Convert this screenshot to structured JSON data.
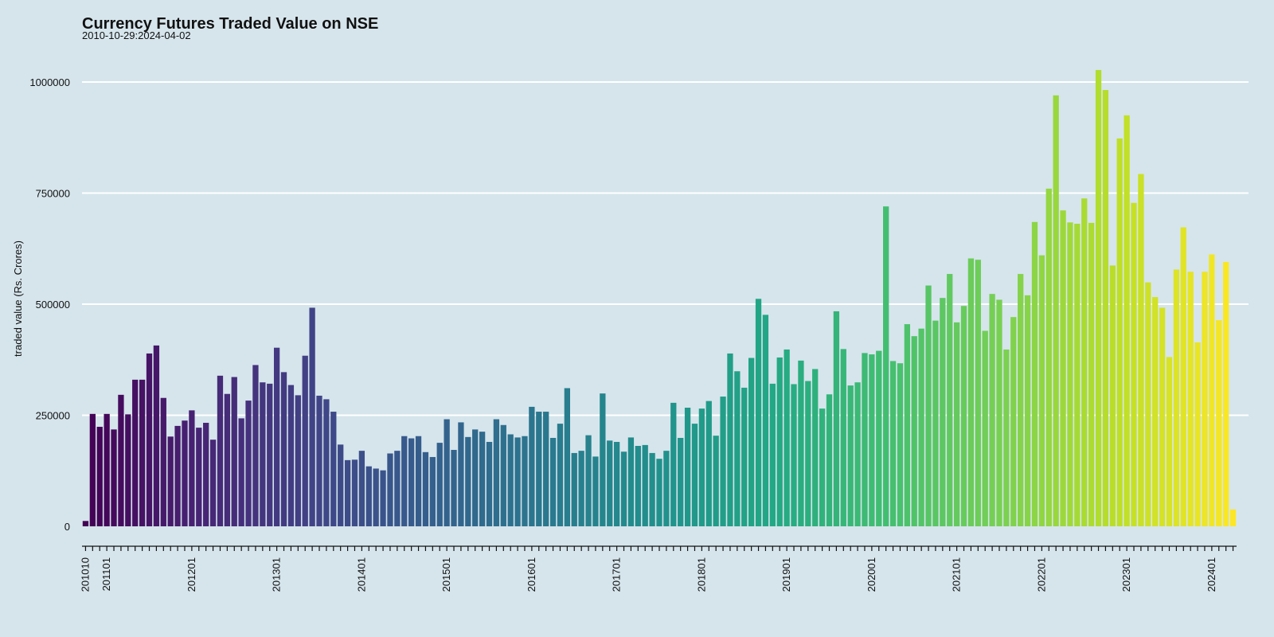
{
  "chart_data": {
    "type": "bar",
    "title": "Currency Futures Traded Value on NSE",
    "subtitle": "2010-10-29:2024-04-02",
    "xlabel": "",
    "ylabel": "traded value (Rs. Crores)",
    "ylim": [
      0,
      1050000
    ],
    "yticks": [
      0,
      250000,
      500000,
      750000,
      1000000
    ],
    "ytick_labels": [
      "0",
      "250000",
      "500000",
      "750000",
      "1000000"
    ],
    "grid": "horizontal",
    "legend": "none",
    "bar_color_scale": "viridis",
    "bar_colors_start": "#440154",
    "bar_colors_end": "#fde725",
    "xtick_labels": [
      "201010",
      "201101",
      "201201",
      "201301",
      "201401",
      "201501",
      "201601",
      "201701",
      "201801",
      "201901",
      "202001",
      "202101",
      "202201",
      "202301",
      "202401"
    ],
    "categories": [
      "201010",
      "201011",
      "201012",
      "201101",
      "201102",
      "201103",
      "201104",
      "201105",
      "201106",
      "201107",
      "201108",
      "201109",
      "201110",
      "201111",
      "201112",
      "201201",
      "201202",
      "201203",
      "201204",
      "201205",
      "201206",
      "201207",
      "201208",
      "201209",
      "201210",
      "201211",
      "201212",
      "201301",
      "201302",
      "201303",
      "201304",
      "201305",
      "201306",
      "201307",
      "201308",
      "201309",
      "201310",
      "201311",
      "201312",
      "201401",
      "201402",
      "201403",
      "201404",
      "201405",
      "201406",
      "201407",
      "201408",
      "201409",
      "201410",
      "201411",
      "201412",
      "201501",
      "201502",
      "201503",
      "201504",
      "201505",
      "201506",
      "201507",
      "201508",
      "201509",
      "201510",
      "201511",
      "201512",
      "201601",
      "201602",
      "201603",
      "201604",
      "201605",
      "201606",
      "201607",
      "201608",
      "201609",
      "201610",
      "201611",
      "201612",
      "201701",
      "201702",
      "201703",
      "201704",
      "201705",
      "201706",
      "201707",
      "201708",
      "201709",
      "201710",
      "201711",
      "201712",
      "201801",
      "201802",
      "201803",
      "201804",
      "201805",
      "201806",
      "201807",
      "201808",
      "201809",
      "201810",
      "201811",
      "201812",
      "201901",
      "201902",
      "201903",
      "201904",
      "201905",
      "201906",
      "201907",
      "201908",
      "201909",
      "201910",
      "201911",
      "201912",
      "202001",
      "202002",
      "202003",
      "202004",
      "202005",
      "202006",
      "202007",
      "202008",
      "202009",
      "202010",
      "202011",
      "202012",
      "202101",
      "202102",
      "202103",
      "202104",
      "202105",
      "202106",
      "202107",
      "202108",
      "202109",
      "202110",
      "202111",
      "202112",
      "202201",
      "202202",
      "202203",
      "202204",
      "202205",
      "202206",
      "202207",
      "202208",
      "202209",
      "202210",
      "202211",
      "202212",
      "202301",
      "202302",
      "202303",
      "202304",
      "202305",
      "202306",
      "202307",
      "202308",
      "202309",
      "202310",
      "202311",
      "202312",
      "202401",
      "202402",
      "202403",
      "202404"
    ],
    "values": [
      12000,
      253000,
      224000,
      253000,
      218000,
      296000,
      252000,
      330000,
      330000,
      389000,
      407000,
      289000,
      202000,
      226000,
      238000,
      261000,
      222000,
      233000,
      195000,
      339000,
      298000,
      336000,
      243000,
      283000,
      363000,
      324000,
      321000,
      402000,
      347000,
      318000,
      295000,
      384000,
      492000,
      294000,
      286000,
      258000,
      184000,
      149000,
      150000,
      170000,
      135000,
      130000,
      126000,
      164000,
      170000,
      203000,
      198000,
      203000,
      167000,
      156000,
      188000,
      241000,
      172000,
      234000,
      201000,
      218000,
      213000,
      190000,
      241000,
      228000,
      207000,
      200000,
      203000,
      269000,
      258000,
      258000,
      199000,
      231000,
      311000,
      165000,
      170000,
      205000,
      157000,
      299000,
      193000,
      190000,
      168000,
      200000,
      181000,
      183000,
      165000,
      152000,
      170000,
      278000,
      199000,
      267000,
      231000,
      265000,
      282000,
      204000,
      292000,
      389000,
      349000,
      312000,
      379000,
      512000,
      476000,
      321000,
      380000,
      398000,
      320000,
      373000,
      327000,
      354000,
      265000,
      297000,
      484000,
      399000,
      317000,
      324000,
      390000,
      387000,
      395000,
      720000,
      372000,
      367000,
      455000,
      428000,
      445000,
      542000,
      463000,
      514000,
      568000,
      459000,
      496000,
      603000,
      600000,
      440000,
      523000,
      510000,
      398000,
      471000,
      568000,
      520000,
      685000,
      610000,
      760000,
      970000,
      711000,
      684000,
      681000,
      738000,
      683000,
      1027000,
      982000,
      587000,
      873000,
      925000,
      728000,
      793000,
      549000,
      516000,
      492000,
      381000,
      578000,
      673000,
      573000,
      414000,
      573000,
      612000,
      464000,
      595000,
      38000
    ]
  }
}
